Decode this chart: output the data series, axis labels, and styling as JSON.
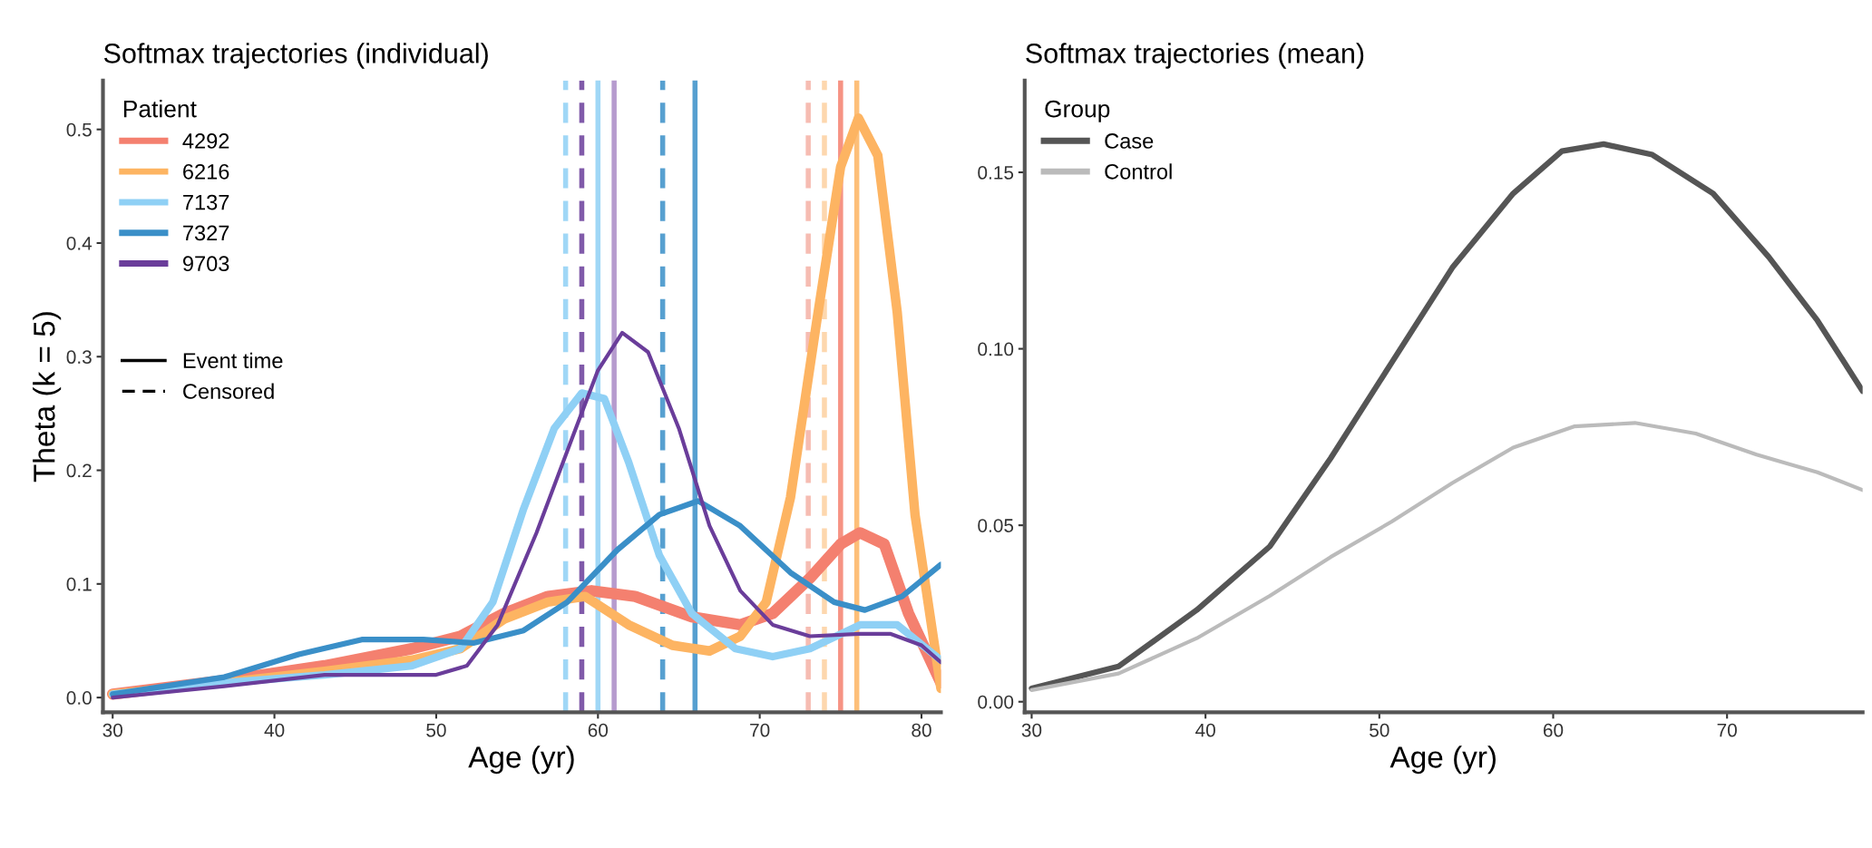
{
  "chart_data": [
    {
      "type": "line",
      "title": "Softmax trajectories (individual)",
      "xlabel": "Age (yr)",
      "ylabel": "Theta (k = 5)",
      "legend_title": "Patient",
      "legend": "top left",
      "annotations": [
        "Event time",
        "Censored"
      ],
      "grid": false,
      "xlim": [
        29.4,
        81.2
      ],
      "ylim": [
        -0.013,
        0.543
      ],
      "xticks": [
        30,
        40,
        50,
        60,
        70,
        80
      ],
      "yticks": [
        {
          "value": 0,
          "label": "0.0"
        },
        {
          "value": 0.1,
          "label": "0.1"
        },
        {
          "value": 0.2,
          "label": "0.2"
        },
        {
          "value": 0.3,
          "label": "0.3"
        },
        {
          "value": 0.4,
          "label": "0.4"
        },
        {
          "value": 0.5,
          "label": "0.5"
        }
      ],
      "series": [
        {
          "name": "4292",
          "color": "#f4806f",
          "x": [
            30,
            36.9,
            43.1,
            48.5,
            51.5,
            54.2,
            56.9,
            59.6,
            62.3,
            65.8,
            68.8,
            70.8,
            73.1,
            75,
            76.2,
            77.7,
            79.2,
            81.2
          ],
          "values": [
            0.003,
            0.015,
            0.028,
            0.043,
            0.054,
            0.074,
            0.089,
            0.094,
            0.089,
            0.071,
            0.064,
            0.074,
            0.105,
            0.135,
            0.145,
            0.135,
            0.074,
            0.013
          ]
        },
        {
          "name": "6216",
          "color": "#fdb462",
          "x": [
            30,
            36.9,
            43.1,
            48.5,
            51.5,
            54.2,
            56.9,
            59.2,
            61.9,
            64.6,
            66.9,
            68.8,
            70.4,
            71.9,
            73.5,
            75,
            76.1,
            77.3,
            78.5,
            79.6,
            81.2
          ],
          "values": [
            0.003,
            0.013,
            0.023,
            0.033,
            0.043,
            0.069,
            0.084,
            0.089,
            0.064,
            0.046,
            0.041,
            0.054,
            0.084,
            0.176,
            0.329,
            0.467,
            0.51,
            0.477,
            0.339,
            0.161,
            0.008
          ]
        },
        {
          "name": "7137",
          "color": "#8fd0f5",
          "x": [
            30,
            36.9,
            43.1,
            48.5,
            51.5,
            53.5,
            55.4,
            57.3,
            59,
            60.4,
            61.9,
            63.8,
            65.8,
            68.5,
            70.8,
            73.1,
            76.2,
            78.5,
            81.2
          ],
          "values": [
            0.003,
            0.013,
            0.02,
            0.028,
            0.043,
            0.084,
            0.166,
            0.237,
            0.268,
            0.263,
            0.207,
            0.125,
            0.074,
            0.043,
            0.036,
            0.043,
            0.064,
            0.064,
            0.033
          ]
        },
        {
          "name": "7327",
          "color": "#3a8fc8",
          "x": [
            30,
            36.9,
            41.5,
            45.4,
            49.2,
            52.3,
            55.4,
            58.1,
            61.2,
            63.8,
            66.2,
            68.8,
            71.9,
            74.6,
            76.5,
            78.8,
            81.2
          ],
          "values": [
            0.003,
            0.018,
            0.038,
            0.051,
            0.051,
            0.048,
            0.059,
            0.084,
            0.13,
            0.161,
            0.173,
            0.151,
            0.11,
            0.084,
            0.077,
            0.089,
            0.117
          ]
        },
        {
          "name": "9703",
          "color": "#6a3d9a",
          "x": [
            30,
            36.9,
            43.1,
            50,
            51.9,
            53.8,
            56.2,
            58.5,
            60,
            61.5,
            63.1,
            65,
            66.9,
            68.8,
            70.8,
            73.1,
            76.2,
            78.1,
            80,
            81.2
          ],
          "values": [
            0.0,
            0.01,
            0.02,
            0.02,
            0.028,
            0.064,
            0.145,
            0.232,
            0.288,
            0.321,
            0.304,
            0.237,
            0.151,
            0.094,
            0.064,
            0.054,
            0.056,
            0.056,
            0.046,
            0.031
          ]
        }
      ],
      "ref_lines": [
        {
          "axis": "x",
          "value": 58,
          "color": "#8fd0f5",
          "line_style": "dashed"
        },
        {
          "axis": "x",
          "value": 59,
          "color": "#6a3d9a",
          "line_style": "dashed"
        },
        {
          "axis": "x",
          "value": 60,
          "color": "#8fd0f5",
          "line_style": "solid"
        },
        {
          "axis": "x",
          "value": 61,
          "color": "#a989c6",
          "line_style": "solid"
        },
        {
          "axis": "x",
          "value": 64,
          "color": "#3a8fc8",
          "line_style": "dashed"
        },
        {
          "axis": "x",
          "value": 66,
          "color": "#3a8fc8",
          "line_style": "solid"
        },
        {
          "axis": "x",
          "value": 73,
          "color": "#f4b0a5",
          "line_style": "dashed"
        },
        {
          "axis": "x",
          "value": 74,
          "color": "#fdd0a0",
          "line_style": "dashed"
        },
        {
          "axis": "x",
          "value": 75,
          "color": "#f4806f",
          "line_style": "solid"
        },
        {
          "axis": "x",
          "value": 76,
          "color": "#fdb462",
          "line_style": "solid"
        }
      ]
    },
    {
      "type": "line",
      "title": "Softmax trajectories (mean)",
      "xlabel": "Age (yr)",
      "legend_title": "Group",
      "legend": "top left",
      "grid": false,
      "xlim": [
        29.6,
        77.8
      ],
      "ylim": [
        -0.003,
        0.176
      ],
      "xticks": [
        30,
        40,
        50,
        60,
        70
      ],
      "yticks": [
        {
          "value": 0,
          "label": "0.00"
        },
        {
          "value": 0.05,
          "label": "0.05"
        },
        {
          "value": 0.1,
          "label": "0.10"
        },
        {
          "value": 0.15,
          "label": "0.15"
        }
      ],
      "series": [
        {
          "name": "Case",
          "color": "#555555",
          "x": [
            30,
            35,
            39.5,
            43.7,
            47.2,
            50.7,
            54.2,
            57.7,
            60.5,
            62.9,
            65.7,
            69.2,
            72.4,
            75.2,
            77.8
          ],
          "values": [
            0.0038,
            0.01,
            0.026,
            0.044,
            0.069,
            0.096,
            0.123,
            0.144,
            0.156,
            0.158,
            0.155,
            0.144,
            0.126,
            0.108,
            0.088
          ]
        },
        {
          "name": "Control",
          "color": "#bbbbbb",
          "x": [
            30,
            35,
            39.5,
            43.7,
            47.2,
            50.7,
            54.2,
            57.7,
            61.2,
            64.7,
            68.2,
            71.7,
            75.2,
            77.8
          ],
          "values": [
            0.0033,
            0.008,
            0.018,
            0.03,
            0.041,
            0.051,
            0.062,
            0.072,
            0.078,
            0.079,
            0.076,
            0.07,
            0.065,
            0.06
          ]
        }
      ]
    }
  ]
}
